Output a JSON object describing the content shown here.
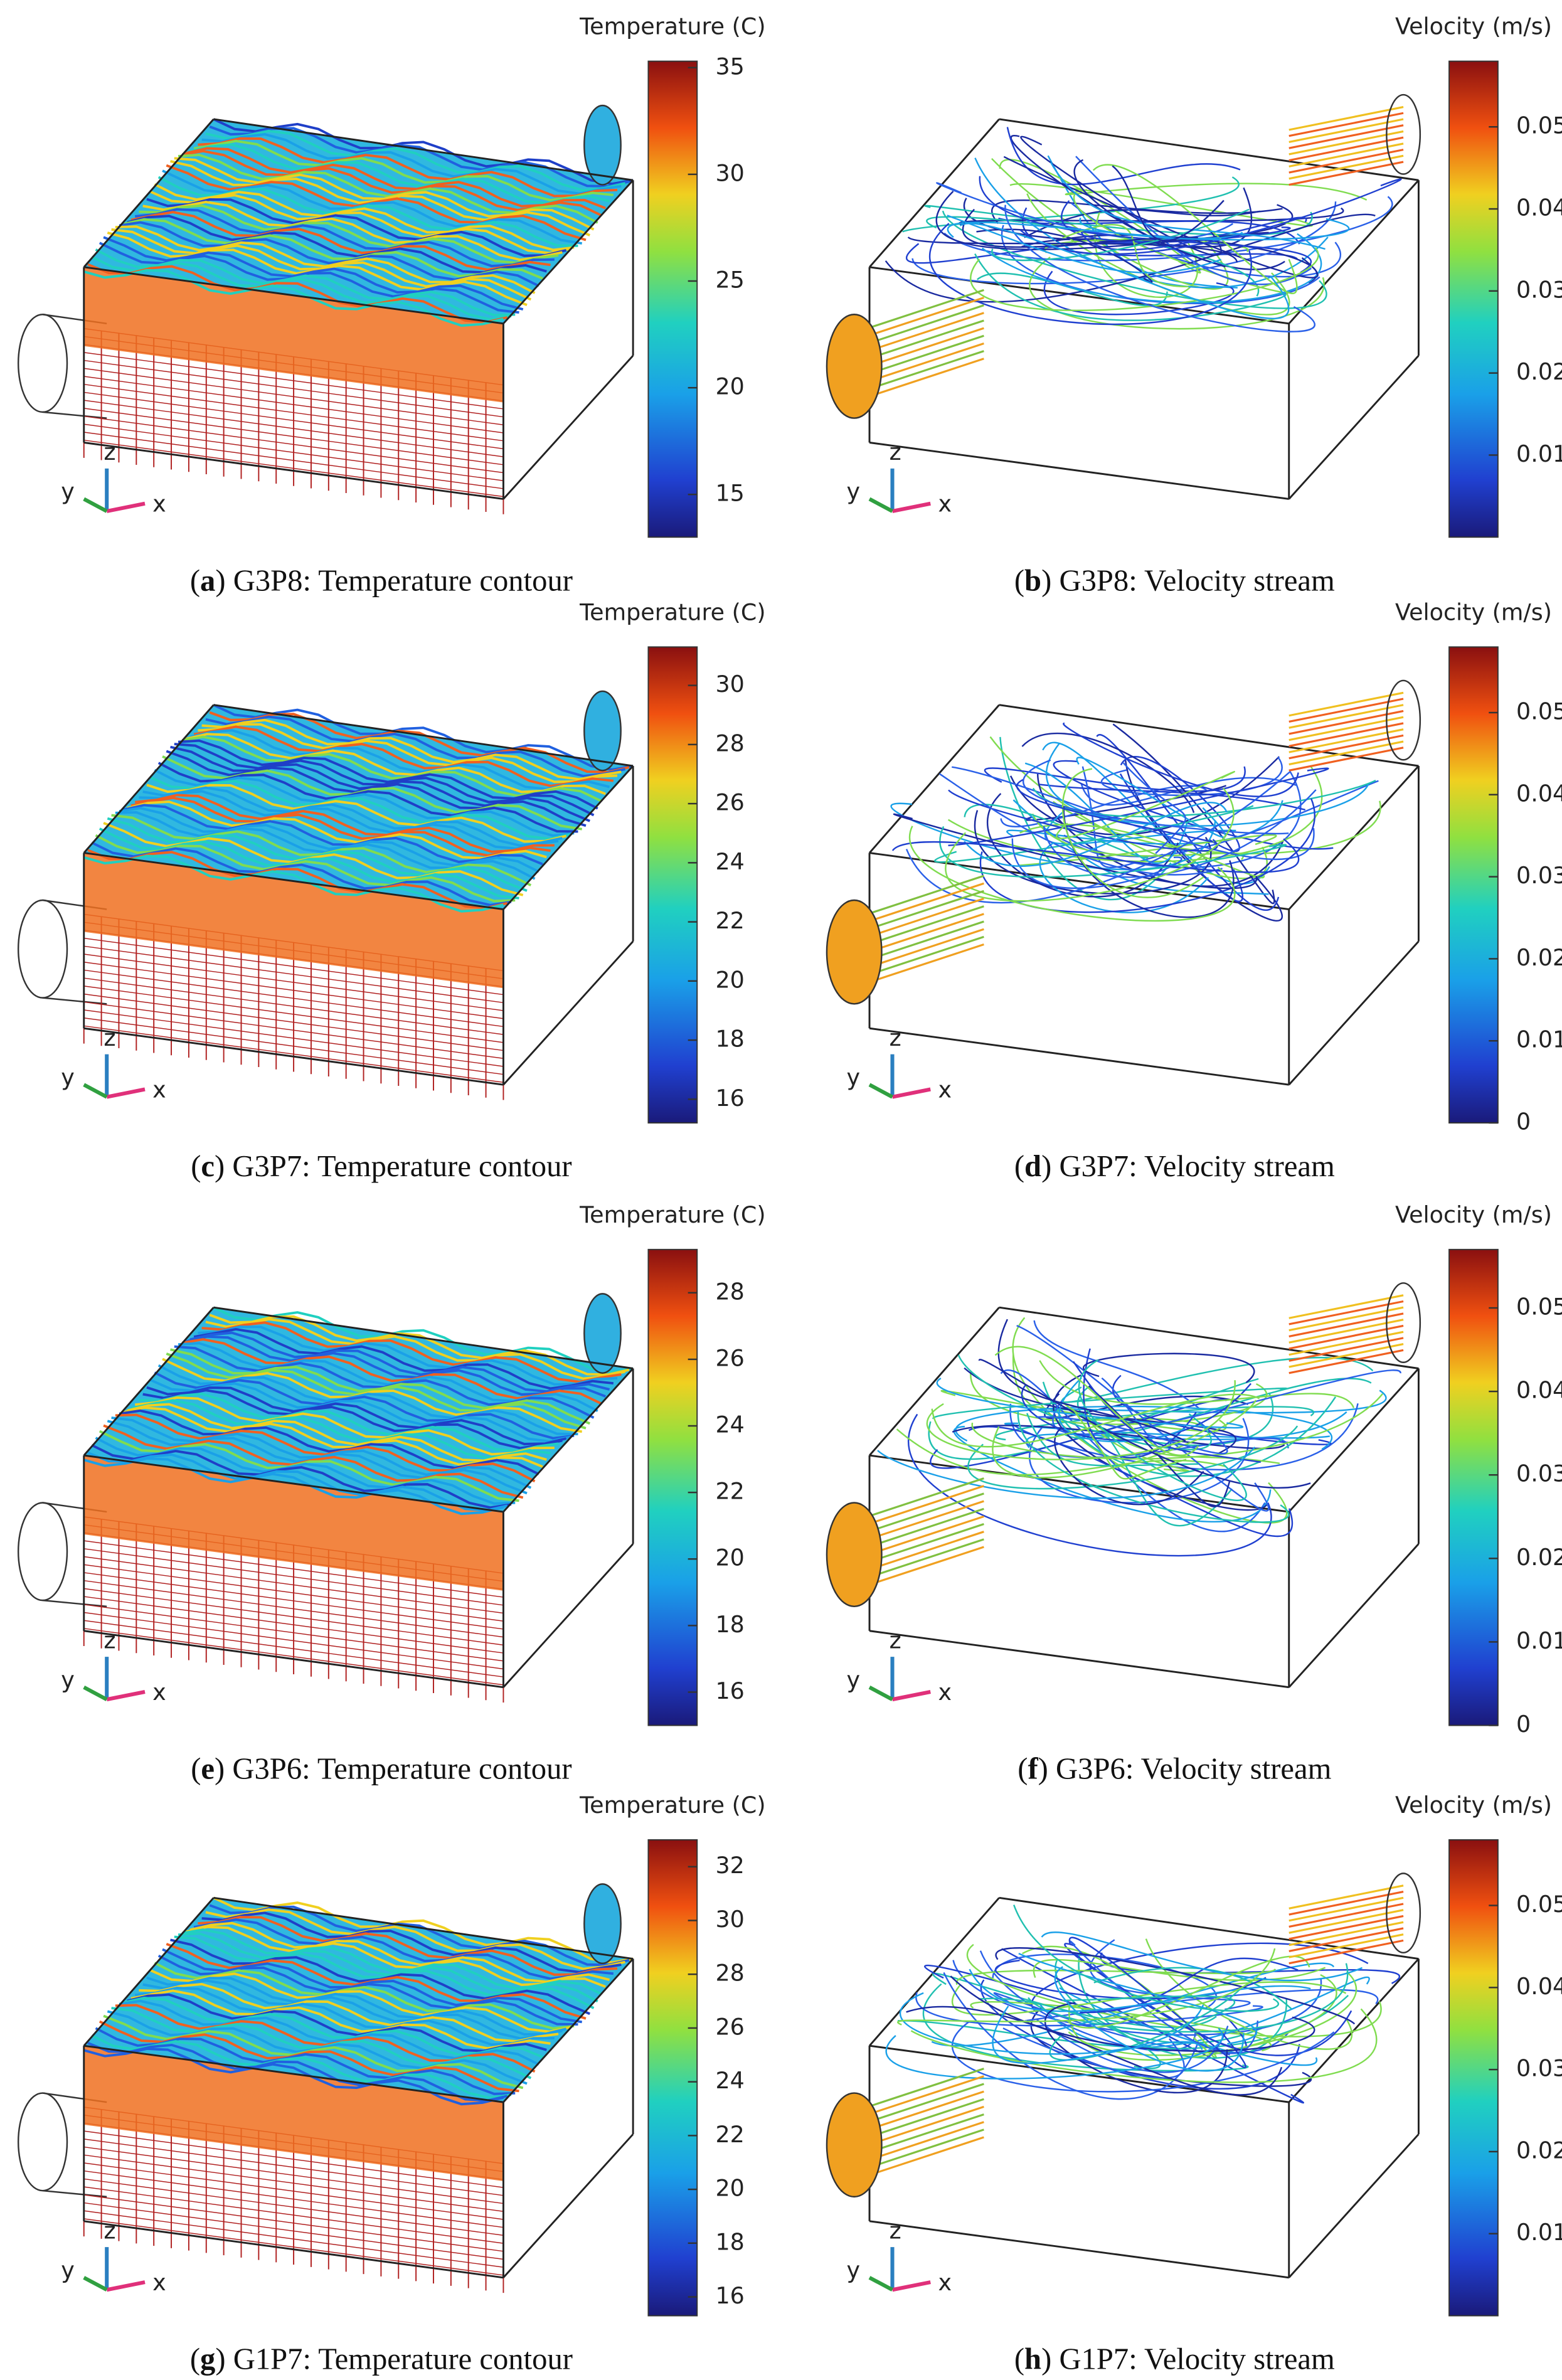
{
  "triad": {
    "x": "x",
    "y": "y",
    "z": "z"
  },
  "panels": [
    {
      "kind": "temperature",
      "caption": {
        "open": "(",
        "letter": "a",
        "rest": ") G3P8: Temperature contour"
      },
      "colorbar": {
        "title": "Temperature (C)",
        "lim": [
          13,
          35.3
        ],
        "ticks": [
          15,
          20,
          25,
          30,
          35
        ]
      }
    },
    {
      "kind": "velocity",
      "caption": {
        "open": "(",
        "letter": "b",
        "rest": ") G3P8: Velocity stream"
      },
      "colorbar": {
        "title": "Velocity (m/s)",
        "lim": [
          0,
          0.058
        ],
        "ticks": [
          0.01,
          0.02,
          0.03,
          0.04,
          0.05
        ]
      }
    },
    {
      "kind": "temperature",
      "caption": {
        "open": "(",
        "letter": "c",
        "rest": ") G3P7: Temperature contour"
      },
      "colorbar": {
        "title": "Temperature (C)",
        "lim": [
          15.2,
          31.3
        ],
        "ticks": [
          16,
          18,
          20,
          22,
          24,
          26,
          28,
          30
        ]
      }
    },
    {
      "kind": "velocity",
      "caption": {
        "open": "(",
        "letter": "d",
        "rest": ") G3P7: Velocity stream"
      },
      "colorbar": {
        "title": "Velocity (m/s)",
        "lim": [
          0,
          0.058
        ],
        "ticks": [
          0,
          0.01,
          0.02,
          0.03,
          0.04,
          0.05
        ]
      }
    },
    {
      "kind": "temperature",
      "caption": {
        "open": "(",
        "letter": "e",
        "rest": ") G3P6: Temperature contour"
      },
      "colorbar": {
        "title": "Temperature (C)",
        "lim": [
          15,
          29.3
        ],
        "ticks": [
          16,
          18,
          20,
          22,
          24,
          26,
          28
        ]
      }
    },
    {
      "kind": "velocity",
      "caption": {
        "open": "(",
        "letter": "f",
        "rest": ") G3P6: Velocity stream"
      },
      "colorbar": {
        "title": "Velocity (m/s)",
        "lim": [
          0,
          0.057
        ],
        "ticks": [
          0,
          0.01,
          0.02,
          0.03,
          0.04,
          0.05
        ]
      }
    },
    {
      "kind": "temperature",
      "caption": {
        "open": "(",
        "letter": "g",
        "rest": ") G1P7: Temperature contour"
      },
      "colorbar": {
        "title": "Temperature (C)",
        "lim": [
          15.3,
          33
        ],
        "ticks": [
          16,
          18,
          20,
          22,
          24,
          26,
          28,
          30,
          32
        ]
      }
    },
    {
      "kind": "velocity",
      "caption": {
        "open": "(",
        "letter": "h",
        "rest": ") G1P7: Velocity stream"
      },
      "colorbar": {
        "title": "Velocity (m/s)",
        "lim": [
          0,
          0.058
        ],
        "ticks": [
          0.01,
          0.02,
          0.03,
          0.04,
          0.05
        ]
      }
    }
  ]
}
